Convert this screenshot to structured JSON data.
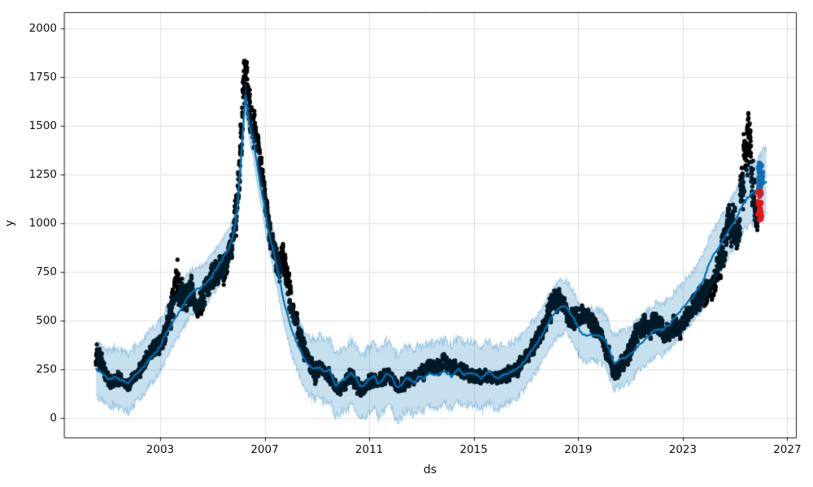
{
  "page": {
    "background": "#ffffff"
  },
  "chart_data": {
    "type": "scatter",
    "title": "",
    "xlabel": "ds",
    "ylabel": "y",
    "x_ticks": [
      2003,
      2007,
      2011,
      2015,
      2019,
      2023,
      2027
    ],
    "y_ticks": [
      0,
      250,
      500,
      750,
      1000,
      1250,
      1500,
      1750,
      2000
    ],
    "xlim": [
      1999.33,
      2027.33
    ],
    "ylim": [
      -100,
      2083
    ],
    "grid": true,
    "legend": "none",
    "seed": 7,
    "style": {
      "observed_color": "#000000",
      "observed_marker_radius": 2.6,
      "line_color": "#0072b2",
      "line_width": 2.2,
      "band_color": "#0072b2",
      "band_fill_alpha": 0.22,
      "band_edge_alpha": 0.3,
      "forecast_points_color": "#146db6",
      "test_points_color": "#e61610",
      "grid_color": "#e0e0e0",
      "spine_color": "#1a1a1a",
      "text_color": "#111111"
    },
    "trend_line": [
      [
        2000.55,
        250
      ],
      [
        2000.8,
        228
      ],
      [
        2001.05,
        195
      ],
      [
        2001.25,
        212
      ],
      [
        2001.45,
        198
      ],
      [
        2001.6,
        188
      ],
      [
        2001.78,
        180
      ],
      [
        2001.95,
        210
      ],
      [
        2002.15,
        235
      ],
      [
        2002.35,
        258
      ],
      [
        2002.6,
        305
      ],
      [
        2002.85,
        340
      ],
      [
        2003.0,
        368
      ],
      [
        2003.2,
        428
      ],
      [
        2003.4,
        472
      ],
      [
        2003.6,
        518
      ],
      [
        2003.8,
        560
      ],
      [
        2004.0,
        608
      ],
      [
        2004.2,
        645
      ],
      [
        2004.4,
        660
      ],
      [
        2004.6,
        672
      ],
      [
        2004.8,
        700
      ],
      [
        2005.0,
        733
      ],
      [
        2005.2,
        775
      ],
      [
        2005.4,
        818
      ],
      [
        2005.6,
        862
      ],
      [
        2005.8,
        940
      ],
      [
        2005.95,
        1080
      ],
      [
        2006.1,
        1330
      ],
      [
        2006.26,
        1655
      ],
      [
        2006.4,
        1515
      ],
      [
        2006.55,
        1425
      ],
      [
        2006.7,
        1310
      ],
      [
        2006.85,
        1185
      ],
      [
        2007.0,
        1080
      ],
      [
        2007.15,
        958
      ],
      [
        2007.35,
        852
      ],
      [
        2007.5,
        758
      ],
      [
        2007.65,
        655
      ],
      [
        2007.8,
        565
      ],
      [
        2008.0,
        470
      ],
      [
        2008.2,
        395
      ],
      [
        2008.45,
        318
      ],
      [
        2008.7,
        268
      ],
      [
        2008.9,
        252
      ],
      [
        2009.1,
        262
      ],
      [
        2009.3,
        238
      ],
      [
        2009.5,
        250
      ],
      [
        2009.7,
        165
      ],
      [
        2009.9,
        185
      ],
      [
        2010.1,
        205
      ],
      [
        2010.3,
        230
      ],
      [
        2010.5,
        208
      ],
      [
        2010.65,
        162
      ],
      [
        2010.8,
        168
      ],
      [
        2011.0,
        196
      ],
      [
        2011.2,
        218
      ],
      [
        2011.35,
        172
      ],
      [
        2011.5,
        192
      ],
      [
        2011.65,
        228
      ],
      [
        2011.85,
        215
      ],
      [
        2012.0,
        170
      ],
      [
        2012.15,
        157
      ],
      [
        2012.3,
        182
      ],
      [
        2012.45,
        208
      ],
      [
        2012.6,
        195
      ],
      [
        2012.75,
        182
      ],
      [
        2012.9,
        216
      ],
      [
        2013.1,
        202
      ],
      [
        2013.25,
        228
      ],
      [
        2013.45,
        220
      ],
      [
        2013.65,
        223
      ],
      [
        2013.85,
        237
      ],
      [
        2014.0,
        228
      ],
      [
        2014.15,
        210
      ],
      [
        2014.3,
        242
      ],
      [
        2014.45,
        250
      ],
      [
        2014.6,
        222
      ],
      [
        2014.8,
        230
      ],
      [
        2015.0,
        228
      ],
      [
        2015.15,
        220
      ],
      [
        2015.3,
        202
      ],
      [
        2015.45,
        225
      ],
      [
        2015.6,
        240
      ],
      [
        2015.75,
        215
      ],
      [
        2015.9,
        202
      ],
      [
        2016.1,
        220
      ],
      [
        2016.3,
        228
      ],
      [
        2016.5,
        240
      ],
      [
        2016.7,
        258
      ],
      [
        2016.9,
        285
      ],
      [
        2017.1,
        325
      ],
      [
        2017.3,
        362
      ],
      [
        2017.5,
        400
      ],
      [
        2017.7,
        445
      ],
      [
        2017.9,
        500
      ],
      [
        2018.1,
        535
      ],
      [
        2018.25,
        562
      ],
      [
        2018.4,
        575
      ],
      [
        2018.55,
        570
      ],
      [
        2018.7,
        538
      ],
      [
        2018.85,
        505
      ],
      [
        2019.0,
        462
      ],
      [
        2019.15,
        432
      ],
      [
        2019.3,
        425
      ],
      [
        2019.5,
        428
      ],
      [
        2019.7,
        425
      ],
      [
        2019.9,
        415
      ],
      [
        2020.05,
        395
      ],
      [
        2020.2,
        345
      ],
      [
        2020.35,
        287
      ],
      [
        2020.5,
        293
      ],
      [
        2020.7,
        305
      ],
      [
        2020.9,
        317
      ],
      [
        2021.1,
        340
      ],
      [
        2021.3,
        372
      ],
      [
        2021.5,
        395
      ],
      [
        2021.7,
        420
      ],
      [
        2021.9,
        450
      ],
      [
        2022.05,
        458
      ],
      [
        2022.2,
        448
      ],
      [
        2022.35,
        468
      ],
      [
        2022.5,
        480
      ],
      [
        2022.65,
        510
      ],
      [
        2022.8,
        532
      ],
      [
        2023.0,
        565
      ],
      [
        2023.2,
        596
      ],
      [
        2023.4,
        625
      ],
      [
        2023.6,
        665
      ],
      [
        2023.8,
        708
      ],
      [
        2024.0,
        790
      ],
      [
        2024.2,
        840
      ],
      [
        2024.4,
        880
      ],
      [
        2024.6,
        930
      ],
      [
        2024.8,
        975
      ],
      [
        2025.0,
        1012
      ],
      [
        2025.2,
        1072
      ],
      [
        2025.4,
        1118
      ],
      [
        2025.6,
        1148
      ],
      [
        2025.8,
        1165
      ],
      [
        2026.0,
        1192
      ],
      [
        2026.2,
        1210
      ]
    ],
    "band_halfwidth": [
      [
        2000.55,
        140
      ],
      [
        2001.5,
        152
      ],
      [
        2002.5,
        140
      ],
      [
        2003.5,
        125
      ],
      [
        2004.5,
        110
      ],
      [
        2005.5,
        100
      ],
      [
        2006.0,
        85
      ],
      [
        2006.26,
        68
      ],
      [
        2006.6,
        80
      ],
      [
        2007.2,
        95
      ],
      [
        2008.0,
        125
      ],
      [
        2009.0,
        158
      ],
      [
        2010.0,
        165
      ],
      [
        2012.0,
        168
      ],
      [
        2014.0,
        165
      ],
      [
        2015.5,
        162
      ],
      [
        2016.5,
        150
      ],
      [
        2017.5,
        140
      ],
      [
        2018.4,
        135
      ],
      [
        2019.5,
        132
      ],
      [
        2020.5,
        140
      ],
      [
        2021.5,
        135
      ],
      [
        2022.5,
        130
      ],
      [
        2023.5,
        130
      ],
      [
        2024.5,
        132
      ],
      [
        2025.3,
        145
      ],
      [
        2025.8,
        158
      ],
      [
        2026.2,
        178
      ]
    ],
    "observed": [
      [
        2000.55,
        335,
        70
      ],
      [
        2000.75,
        285,
        62
      ],
      [
        2000.95,
        215,
        58
      ],
      [
        2001.15,
        170,
        40
      ],
      [
        2001.35,
        198,
        46
      ],
      [
        2001.55,
        188,
        46
      ],
      [
        2001.75,
        160,
        32
      ],
      [
        2001.95,
        205,
        40
      ],
      [
        2002.2,
        242,
        46
      ],
      [
        2002.45,
        295,
        55
      ],
      [
        2002.7,
        345,
        58
      ],
      [
        2002.9,
        368,
        58
      ],
      [
        2003.1,
        408,
        62
      ],
      [
        2003.3,
        490,
        80
      ],
      [
        2003.5,
        600,
        130
      ],
      [
        2003.65,
        700,
        200
      ],
      [
        2003.8,
        645,
        120
      ],
      [
        2004.0,
        612,
        80
      ],
      [
        2004.2,
        652,
        80
      ],
      [
        2004.4,
        548,
        70
      ],
      [
        2004.6,
        600,
        78
      ],
      [
        2004.8,
        680,
        80
      ],
      [
        2005.0,
        740,
        80
      ],
      [
        2005.2,
        750,
        80
      ],
      [
        2005.4,
        762,
        88
      ],
      [
        2005.6,
        822,
        90
      ],
      [
        2005.8,
        950,
        108
      ],
      [
        2005.95,
        1105,
        140
      ],
      [
        2006.1,
        1430,
        215
      ],
      [
        2006.25,
        1800,
        185
      ],
      [
        2006.4,
        1598,
        150
      ],
      [
        2006.55,
        1488,
        112
      ],
      [
        2006.7,
        1432,
        100
      ],
      [
        2006.85,
        1302,
        92
      ],
      [
        2007.0,
        1152,
        90
      ],
      [
        2007.15,
        1000,
        82
      ],
      [
        2007.3,
        880,
        92
      ],
      [
        2007.5,
        790,
        108
      ],
      [
        2007.7,
        812,
        108
      ],
      [
        2007.9,
        680,
        92
      ],
      [
        2008.1,
        530,
        88
      ],
      [
        2008.3,
        440,
        72
      ],
      [
        2008.5,
        362,
        62
      ],
      [
        2008.7,
        300,
        60
      ],
      [
        2008.9,
        222,
        64
      ],
      [
        2009.1,
        268,
        50
      ],
      [
        2009.3,
        236,
        46
      ],
      [
        2009.5,
        216,
        46
      ],
      [
        2009.7,
        168,
        42
      ],
      [
        2009.9,
        140,
        36
      ],
      [
        2010.1,
        186,
        46
      ],
      [
        2010.3,
        226,
        46
      ],
      [
        2010.5,
        172,
        48
      ],
      [
        2010.7,
        145,
        36
      ],
      [
        2010.9,
        172,
        40
      ],
      [
        2011.1,
        206,
        42
      ],
      [
        2011.3,
        182,
        40
      ],
      [
        2011.5,
        200,
        42
      ],
      [
        2011.7,
        226,
        42
      ],
      [
        2011.9,
        200,
        45
      ],
      [
        2012.1,
        154,
        40
      ],
      [
        2012.3,
        172,
        40
      ],
      [
        2012.5,
        205,
        42
      ],
      [
        2012.7,
        210,
        42
      ],
      [
        2012.9,
        222,
        42
      ],
      [
        2013.1,
        240,
        45
      ],
      [
        2013.3,
        276,
        46
      ],
      [
        2013.5,
        262,
        46
      ],
      [
        2013.7,
        272,
        46
      ],
      [
        2013.9,
        296,
        42
      ],
      [
        2014.1,
        262,
        46
      ],
      [
        2014.3,
        256,
        45
      ],
      [
        2014.5,
        242,
        42
      ],
      [
        2014.7,
        230,
        42
      ],
      [
        2014.9,
        222,
        40
      ],
      [
        2015.1,
        215,
        40
      ],
      [
        2015.3,
        202,
        40
      ],
      [
        2015.5,
        215,
        40
      ],
      [
        2015.7,
        210,
        40
      ],
      [
        2015.9,
        202,
        40
      ],
      [
        2016.1,
        212,
        40
      ],
      [
        2016.3,
        222,
        42
      ],
      [
        2016.5,
        238,
        45
      ],
      [
        2016.7,
        262,
        48
      ],
      [
        2016.9,
        295,
        52
      ],
      [
        2017.1,
        332,
        56
      ],
      [
        2017.3,
        378,
        60
      ],
      [
        2017.5,
        425,
        65
      ],
      [
        2017.7,
        482,
        70
      ],
      [
        2017.9,
        548,
        76
      ],
      [
        2018.05,
        622,
        88
      ],
      [
        2018.2,
        600,
        80
      ],
      [
        2018.35,
        620,
        76
      ],
      [
        2018.5,
        562,
        70
      ],
      [
        2018.65,
        515,
        66
      ],
      [
        2018.8,
        505,
        64
      ],
      [
        2018.95,
        522,
        60
      ],
      [
        2019.1,
        512,
        60
      ],
      [
        2019.25,
        532,
        60
      ],
      [
        2019.4,
        508,
        60
      ],
      [
        2019.55,
        490,
        60
      ],
      [
        2019.7,
        478,
        60
      ],
      [
        2019.85,
        430,
        56
      ],
      [
        2020.0,
        372,
        56
      ],
      [
        2020.15,
        322,
        55
      ],
      [
        2020.3,
        252,
        48
      ],
      [
        2020.45,
        228,
        44
      ],
      [
        2020.6,
        268,
        50
      ],
      [
        2020.75,
        295,
        52
      ],
      [
        2020.9,
        322,
        55
      ],
      [
        2021.1,
        388,
        60
      ],
      [
        2021.3,
        452,
        64
      ],
      [
        2021.5,
        482,
        64
      ],
      [
        2021.7,
        452,
        64
      ],
      [
        2021.9,
        492,
        64
      ],
      [
        2022.1,
        475,
        64
      ],
      [
        2022.3,
        432,
        60
      ],
      [
        2022.5,
        448,
        60
      ],
      [
        2022.7,
        478,
        62
      ],
      [
        2022.9,
        452,
        60
      ],
      [
        2023.1,
        512,
        65
      ],
      [
        2023.3,
        548,
        68
      ],
      [
        2023.5,
        585,
        70
      ],
      [
        2023.7,
        622,
        74
      ],
      [
        2023.9,
        642,
        76
      ],
      [
        2024.1,
        688,
        82
      ],
      [
        2024.3,
        742,
        92
      ],
      [
        2024.5,
        825,
        112
      ],
      [
        2024.65,
        945,
        132
      ],
      [
        2024.8,
        1012,
        132
      ],
      [
        2024.95,
        1000,
        122
      ],
      [
        2025.1,
        952,
        135
      ],
      [
        2025.25,
        1155,
        195
      ],
      [
        2025.4,
        1385,
        205
      ],
      [
        2025.55,
        1420,
        205
      ],
      [
        2025.65,
        1285,
        205
      ],
      [
        2025.78,
        1090,
        150
      ],
      [
        2025.88,
        1030,
        135
      ]
    ],
    "observed_x_end": 2025.88,
    "forecast_points": {
      "x_start": 2025.875,
      "x_end": 2026.06,
      "y_min": 1150,
      "y_max": 1315,
      "count": 34,
      "radius": 3.1
    },
    "test_points": {
      "x_start": 2025.86,
      "x_end": 2026.02,
      "y_min": 1015,
      "y_max": 1172,
      "count": 18,
      "radius": 3.3
    }
  }
}
